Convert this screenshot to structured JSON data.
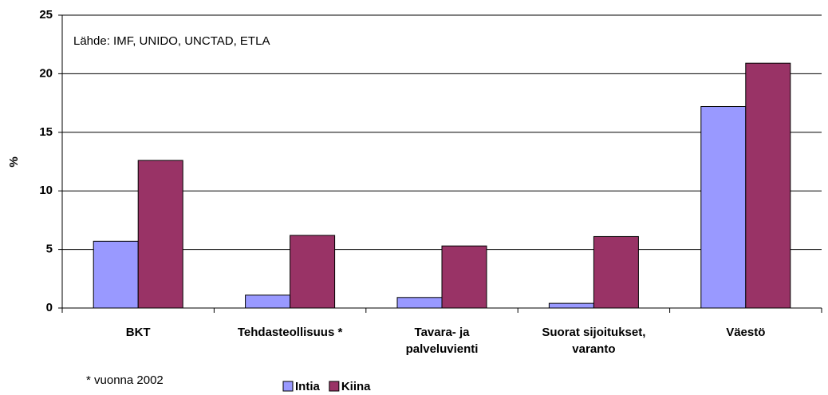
{
  "chart_data": {
    "type": "bar",
    "categories": [
      "BKT",
      "Tehdasteollisuus *",
      "Tavara- ja\npalveluvienti",
      "Suorat sijoitukset,\nvaranto",
      "Väestö"
    ],
    "series": [
      {
        "name": "Intia",
        "color": "#9999ff",
        "values": [
          5.7,
          1.1,
          0.9,
          0.4,
          17.2
        ]
      },
      {
        "name": "Kiina",
        "color": "#993366",
        "values": [
          12.6,
          6.2,
          5.3,
          6.1,
          20.9
        ]
      }
    ],
    "ylabel": "%",
    "annotations": [
      "Lähde: IMF, UNIDO, UNCTAD, ETLA",
      "* vuonna 2002"
    ],
    "ylim": [
      0,
      25
    ],
    "yticks": [
      0,
      5,
      10,
      15,
      20,
      25
    ],
    "grid": true,
    "legend": "bottom"
  }
}
